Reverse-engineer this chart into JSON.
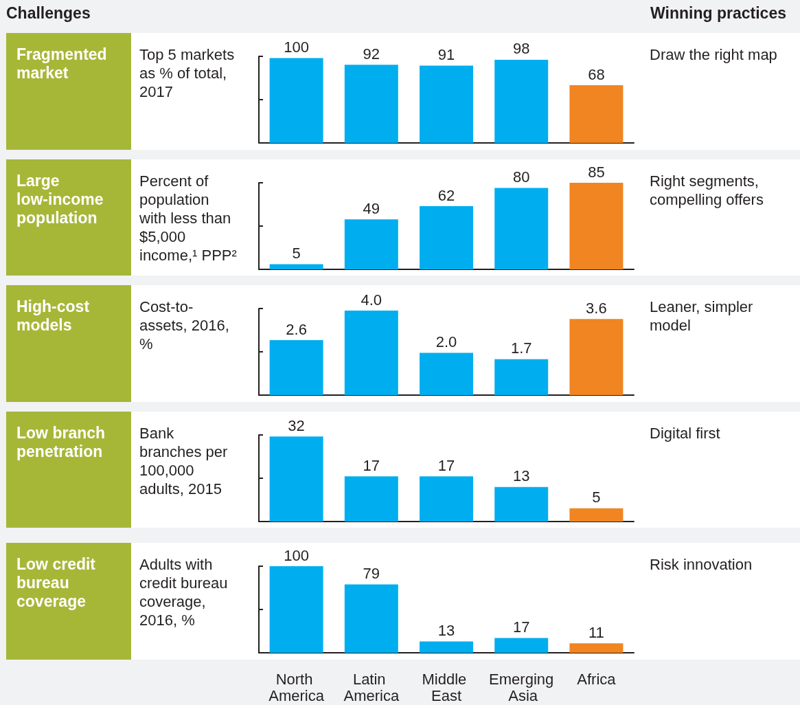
{
  "chart_data": [
    {
      "type": "other",
      "annotations": [
        "Challenges",
        "Winning practices"
      ]
    },
    {
      "type": "bar",
      "ylabel": "Top 5 markets as % of total, 2017",
      "annotations": [
        "Fragmented market",
        "Draw the right map"
      ],
      "categories": [
        "North America",
        "Latin America",
        "Middle East",
        "Emerging Asia",
        "Africa"
      ],
      "values": [
        100,
        92,
        91,
        98,
        68
      ],
      "colors": [
        "#00aeef",
        "#00aeef",
        "#00aeef",
        "#00aeef",
        "#f08522"
      ],
      "ylim": [
        0,
        102
      ],
      "yticks": [
        {
          "value": 51,
          "label": null
        },
        {
          "value": 102,
          "label": null
        }
      ],
      "data_labels": true,
      "tick_labels": false
    },
    {
      "type": "bar",
      "ylabel": "Percent of population with less than $5,000 income,¹ PPP²",
      "annotations": [
        "Large low-income population",
        "Right segments, compelling offers"
      ],
      "categories": [
        "North America",
        "Latin America",
        "Middle East",
        "Emerging Asia",
        "Africa"
      ],
      "values": [
        5,
        49,
        62,
        80,
        85
      ],
      "colors": [
        "#00aeef",
        "#00aeef",
        "#00aeef",
        "#00aeef",
        "#f08522"
      ],
      "ylim": [
        0,
        85
      ],
      "yticks": [
        {
          "value": 42.5,
          "label": null
        },
        {
          "value": 85,
          "label": null
        }
      ],
      "data_labels": true,
      "tick_labels": false
    },
    {
      "type": "bar",
      "ylabel": "Cost-to-assets, 2016, %",
      "annotations": [
        "High-cost models",
        "Leaner, simpler model"
      ],
      "categories": [
        "North America",
        "Latin America",
        "Middle East",
        "Emerging Asia",
        "Africa"
      ],
      "values": [
        2.6,
        4.0,
        2.0,
        1.7,
        3.6
      ],
      "value_labels": [
        "2.6",
        "4.0",
        "2.0",
        "1.7",
        "3.6"
      ],
      "colors": [
        "#00aeef",
        "#00aeef",
        "#00aeef",
        "#00aeef",
        "#f08522"
      ],
      "ylim": [
        0,
        4.1
      ],
      "yticks": [
        {
          "value": 2.05,
          "label": null
        },
        {
          "value": 4.1,
          "label": null
        }
      ],
      "tick_labels": false
    },
    {
      "type": "bar",
      "ylabel": "Bank branches per 100,000 adults, 2015",
      "annotations": [
        "Low branch penetration",
        "Digital first"
      ],
      "categories": [
        "North America",
        "Latin America",
        "Middle East",
        "Emerging Asia",
        "Africa"
      ],
      "values": [
        32,
        17,
        17,
        13,
        5
      ],
      "colors": [
        "#00aeef",
        "#00aeef",
        "#00aeef",
        "#00aeef",
        "#f08522"
      ],
      "ylim": [
        0,
        32.6
      ],
      "yticks": [
        {
          "value": 16.3,
          "label": null
        },
        {
          "value": 32.6,
          "label": null
        }
      ],
      "data_labels": true,
      "tick_labels": false
    },
    {
      "type": "bar",
      "ylabel": "Adults with credit bureau coverage, 2016, %",
      "annotations": [
        "Low credit bureau coverage",
        "Risk innovation"
      ],
      "categories": [
        "North America",
        "Latin America",
        "Middle East",
        "Emerging Asia",
        "Africa"
      ],
      "values": [
        100,
        79,
        13,
        17,
        11
      ],
      "colors": [
        "#00aeef",
        "#00aeef",
        "#00aeef",
        "#00aeef",
        "#f08522"
      ],
      "ylim": [
        0,
        100
      ],
      "yticks": [
        {
          "value": 50,
          "label": null
        },
        {
          "value": 100,
          "label": null
        }
      ],
      "data_labels": true,
      "tick_labels": "x"
    }
  ]
}
